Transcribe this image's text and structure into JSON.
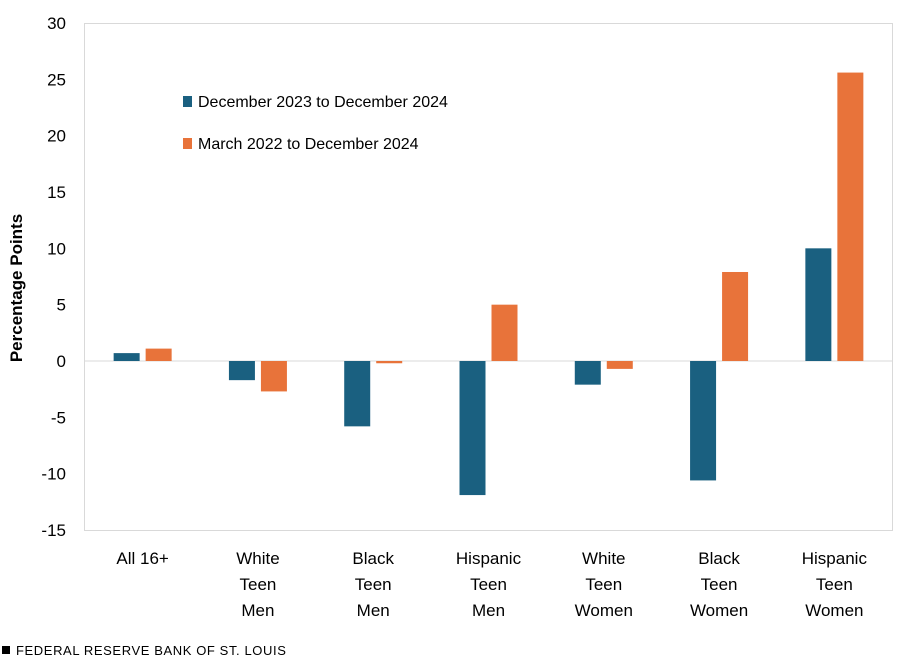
{
  "chart_data": {
    "type": "bar",
    "title": "",
    "xlabel": "",
    "ylabel": "Percentage Points",
    "ylim": [
      -15,
      30
    ],
    "yticks": [
      "30",
      "25",
      "20",
      "15",
      "10",
      "5",
      "0",
      "-5",
      "-10",
      "-15"
    ],
    "categories": [
      [
        "All 16+"
      ],
      [
        "White",
        "Teen",
        "Men"
      ],
      [
        "Black",
        "Teen",
        "Men"
      ],
      [
        "Hispanic",
        "Teen",
        "Men"
      ],
      [
        "White",
        "Teen",
        "Women"
      ],
      [
        "Black",
        "Teen",
        "Women"
      ],
      [
        "Hispanic",
        "Teen",
        "Women"
      ]
    ],
    "series": [
      {
        "name": "December 2023 to December 2024",
        "color": "#1a6080",
        "values": [
          0.7,
          -1.7,
          -5.8,
          -11.9,
          -2.1,
          -10.6,
          10.0
        ]
      },
      {
        "name": "March 2022 to December 2024",
        "color": "#e8733a",
        "values": [
          1.1,
          -2.7,
          -0.2,
          5.0,
          -0.7,
          7.9,
          25.6
        ]
      }
    ],
    "legend_position": "top-left"
  },
  "footer": {
    "source": "FEDERAL RESERVE BANK OF ST. LOUIS"
  }
}
